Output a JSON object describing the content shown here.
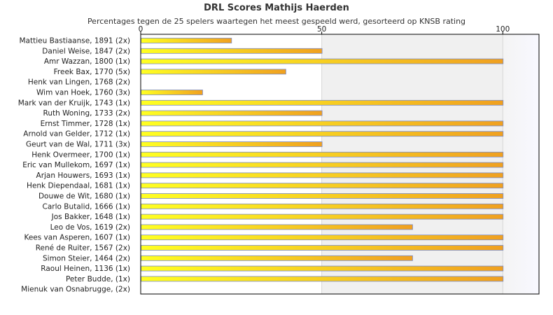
{
  "chart_data": {
    "type": "bar",
    "orientation": "horizontal",
    "title": "DRL Scores Mathijs Haerden",
    "subtitle": "Percentages tegen de 25 spelers waartegen het meest gespeeld werd, gesorteerd op KNSB rating",
    "xlabel": "",
    "ylabel": "",
    "xlim": [
      0,
      110
    ],
    "x_ticks": [
      0,
      50,
      100
    ],
    "grid": true,
    "categories": [
      "Mattieu Bastiaanse, 1891 (2x)",
      "Daniel Weise, 1847 (2x)",
      "Amr Wazzan, 1800 (1x)",
      "Freek Bax, 1770 (5x)",
      "Henk van Lingen, 1768 (2x)",
      "Wim van Hoek, 1760 (3x)",
      "Mark van der Kruijk, 1743 (1x)",
      "Ruth Woning, 1733 (2x)",
      "Ernst Timmer, 1728 (1x)",
      "Arnold van Gelder, 1712 (1x)",
      "Geurt van de Wal, 1711 (3x)",
      "Henk Overmeer, 1700 (1x)",
      "Eric van Mullekom, 1697 (1x)",
      "Arjan Houwers, 1693 (1x)",
      "Henk Diependaal, 1681 (1x)",
      "Douwe de Wit, 1680 (1x)",
      "Carlo Butalid, 1666 (1x)",
      "Jos Bakker, 1648 (1x)",
      "Leo de Vos, 1619 (2x)",
      "Kees van Asperen, 1607 (1x)",
      "René de Ruiter, 1567 (2x)",
      "Simon Steier, 1464 (2x)",
      "Raoul Heinen, 1136 (1x)",
      "Peter Budde,  (1x)",
      "Mienuk van Osnabrugge,  (2x)"
    ],
    "values": [
      25,
      50,
      100,
      40,
      0,
      17,
      100,
      50,
      100,
      100,
      50,
      100,
      100,
      100,
      100,
      100,
      100,
      100,
      75,
      100,
      100,
      75,
      100,
      100,
      0
    ],
    "colors": {
      "bar_start": "#ffff22",
      "bar_end": "#f0a020",
      "bar_stroke": "#7a8cc8",
      "band": "#f0f0f0",
      "band_end": "#f8f8ff",
      "axis": "#000000",
      "grid": "#d8d8d8"
    }
  }
}
